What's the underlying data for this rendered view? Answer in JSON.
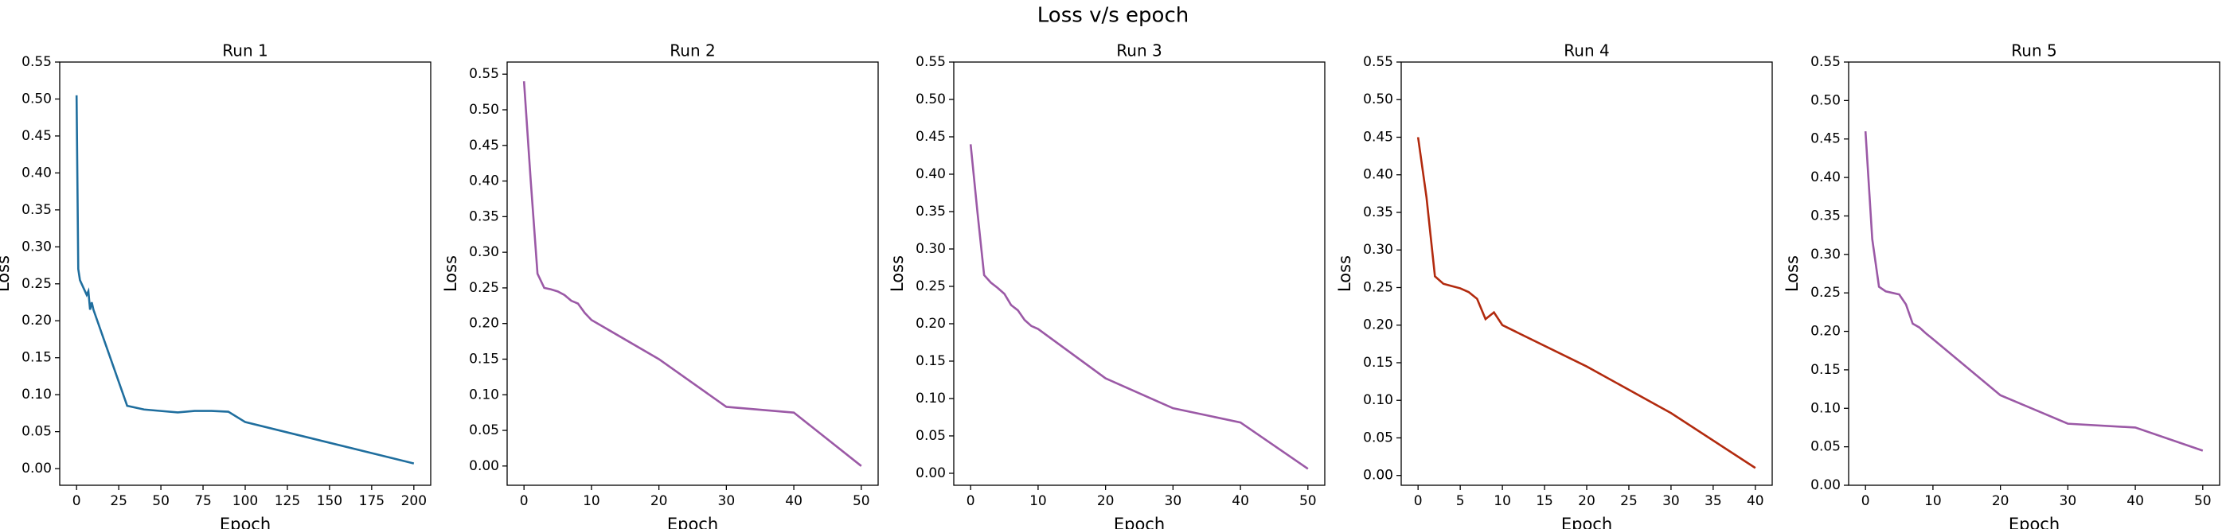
{
  "title": "Loss v/s epoch",
  "chart_data": [
    {
      "type": "line",
      "title": "Run 1",
      "x_label": "Epoch",
      "y_label": "Loss",
      "x": [
        0,
        1,
        2,
        3,
        4,
        5,
        6,
        7,
        8,
        9,
        10,
        30,
        40,
        50,
        60,
        70,
        80,
        90,
        100,
        200
      ],
      "series": [
        {
          "color": "#1f6e9e",
          "values": [
            0.505,
            0.27,
            0.255,
            0.25,
            0.245,
            0.24,
            0.235,
            0.24,
            0.215,
            0.225,
            0.215,
            0.085,
            0.08,
            0.078,
            0.076,
            0.078,
            0.078,
            0.077,
            0.063,
            0.007
          ]
        }
      ],
      "xlim": [
        -10,
        210
      ],
      "xticks": [
        0,
        25,
        50,
        75,
        100,
        125,
        150,
        175,
        200
      ],
      "ylim": [
        -0.0225,
        0.55
      ],
      "yticks": [
        {
          "value": 0,
          "label": "0.00"
        },
        {
          "value": 0.05,
          "label": "0.05"
        },
        {
          "value": 0.1,
          "label": "0.10"
        },
        {
          "value": 0.15,
          "label": "0.15"
        },
        {
          "value": 0.2,
          "label": "0.20"
        },
        {
          "value": 0.25,
          "label": "0.25"
        },
        {
          "value": 0.3,
          "label": "0.30"
        },
        {
          "value": 0.35,
          "label": "0.35"
        },
        {
          "value": 0.4,
          "label": "0.40"
        },
        {
          "value": 0.45,
          "label": "0.45"
        },
        {
          "value": 0.5,
          "label": "0.50"
        },
        {
          "value": 0.55,
          "label": "0.55"
        }
      ]
    },
    {
      "type": "line",
      "title": "Run 2",
      "x_label": "Epoch",
      "y_label": "Loss",
      "x": [
        0,
        1,
        2,
        3,
        4,
        5,
        6,
        7,
        8,
        9,
        10,
        20,
        30,
        40,
        50
      ],
      "series": [
        {
          "color": "#9b59a6",
          "values": [
            0.54,
            0.4,
            0.27,
            0.25,
            0.248,
            0.245,
            0.24,
            0.232,
            0.228,
            0.215,
            0.205,
            0.15,
            0.083,
            0.075,
            0.0
          ]
        }
      ],
      "xlim": [
        -2.5,
        52.5
      ],
      "xticks": [
        0,
        10,
        20,
        30,
        40,
        50
      ],
      "ylim": [
        -0.027,
        0.567
      ],
      "yticks": [
        {
          "value": 0,
          "label": "0.00"
        },
        {
          "value": 0.05,
          "label": "0.05"
        },
        {
          "value": 0.1,
          "label": "0.10"
        },
        {
          "value": 0.15,
          "label": "0.15"
        },
        {
          "value": 0.2,
          "label": "0.20"
        },
        {
          "value": 0.25,
          "label": "0.25"
        },
        {
          "value": 0.3,
          "label": "0.30"
        },
        {
          "value": 0.35,
          "label": "0.35"
        },
        {
          "value": 0.4,
          "label": "0.40"
        },
        {
          "value": 0.45,
          "label": "0.45"
        },
        {
          "value": 0.5,
          "label": "0.50"
        },
        {
          "value": 0.55,
          "label": "0.55"
        }
      ]
    },
    {
      "type": "line",
      "title": "Run 3",
      "x_label": "Epoch",
      "y_label": "Loss",
      "x": [
        0,
        1,
        2,
        3,
        4,
        5,
        6,
        7,
        8,
        9,
        10,
        20,
        30,
        40,
        50
      ],
      "series": [
        {
          "color": "#9b59a6",
          "values": [
            0.44,
            0.35,
            0.265,
            0.255,
            0.248,
            0.24,
            0.225,
            0.218,
            0.205,
            0.197,
            0.193,
            0.127,
            0.087,
            0.068,
            0.006
          ]
        }
      ],
      "xlim": [
        -2.5,
        52.5
      ],
      "xticks": [
        0,
        10,
        20,
        30,
        40,
        50
      ],
      "ylim": [
        -0.016,
        0.55
      ],
      "yticks": [
        {
          "value": 0,
          "label": "0.00"
        },
        {
          "value": 0.05,
          "label": "0.05"
        },
        {
          "value": 0.1,
          "label": "0.10"
        },
        {
          "value": 0.15,
          "label": "0.15"
        },
        {
          "value": 0.2,
          "label": "0.20"
        },
        {
          "value": 0.25,
          "label": "0.25"
        },
        {
          "value": 0.3,
          "label": "0.30"
        },
        {
          "value": 0.35,
          "label": "0.35"
        },
        {
          "value": 0.4,
          "label": "0.40"
        },
        {
          "value": 0.45,
          "label": "0.45"
        },
        {
          "value": 0.5,
          "label": "0.50"
        },
        {
          "value": 0.55,
          "label": "0.55"
        }
      ]
    },
    {
      "type": "line",
      "title": "Run 4",
      "x_label": "Epoch",
      "y_label": "Loss",
      "x": [
        0,
        1,
        2,
        3,
        4,
        5,
        6,
        7,
        8,
        9,
        10,
        20,
        30,
        40
      ],
      "series": [
        {
          "color": "#b22a0e",
          "values": [
            0.45,
            0.37,
            0.265,
            0.255,
            0.252,
            0.249,
            0.244,
            0.235,
            0.208,
            0.217,
            0.2,
            0.145,
            0.083,
            0.01
          ]
        }
      ],
      "xlim": [
        -2,
        42
      ],
      "xticks": [
        0,
        5,
        10,
        15,
        20,
        25,
        30,
        35,
        40
      ],
      "ylim": [
        -0.013,
        0.55
      ],
      "yticks": [
        {
          "value": 0,
          "label": "0.00"
        },
        {
          "value": 0.05,
          "label": "0.05"
        },
        {
          "value": 0.1,
          "label": "0.10"
        },
        {
          "value": 0.15,
          "label": "0.15"
        },
        {
          "value": 0.2,
          "label": "0.20"
        },
        {
          "value": 0.25,
          "label": "0.25"
        },
        {
          "value": 0.3,
          "label": "0.30"
        },
        {
          "value": 0.35,
          "label": "0.35"
        },
        {
          "value": 0.4,
          "label": "0.40"
        },
        {
          "value": 0.45,
          "label": "0.45"
        },
        {
          "value": 0.5,
          "label": "0.50"
        },
        {
          "value": 0.55,
          "label": "0.55"
        }
      ]
    },
    {
      "type": "line",
      "title": "Run 5",
      "x_label": "Epoch",
      "y_label": "Loss",
      "x": [
        0,
        1,
        2,
        3,
        4,
        5,
        6,
        7,
        8,
        9,
        10,
        20,
        30,
        40,
        50
      ],
      "series": [
        {
          "color": "#9b59a6",
          "values": [
            0.46,
            0.32,
            0.258,
            0.252,
            0.25,
            0.248,
            0.235,
            0.21,
            0.205,
            0.197,
            0.19,
            0.117,
            0.08,
            0.075,
            0.045
          ]
        }
      ],
      "xlim": [
        -2.5,
        52.5
      ],
      "xticks": [
        0,
        10,
        20,
        30,
        40,
        50
      ],
      "ylim": [
        0,
        0.55
      ],
      "yticks": [
        {
          "value": 0,
          "label": "0.00"
        },
        {
          "value": 0.05,
          "label": "0.05"
        },
        {
          "value": 0.1,
          "label": "0.10"
        },
        {
          "value": 0.15,
          "label": "0.15"
        },
        {
          "value": 0.2,
          "label": "0.20"
        },
        {
          "value": 0.25,
          "label": "0.25"
        },
        {
          "value": 0.3,
          "label": "0.30"
        },
        {
          "value": 0.35,
          "label": "0.35"
        },
        {
          "value": 0.4,
          "label": "0.40"
        },
        {
          "value": 0.45,
          "label": "0.45"
        },
        {
          "value": 0.5,
          "label": "0.50"
        },
        {
          "value": 0.55,
          "label": "0.55"
        }
      ]
    }
  ]
}
